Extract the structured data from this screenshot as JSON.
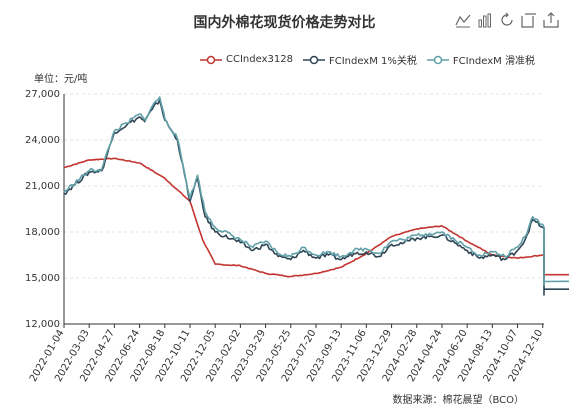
{
  "title": "国内外棉花现货价格走势对比",
  "unit_label": "单位：元/吨",
  "source": "数据来源：棉花晨望（BCO）",
  "toolbar": {
    "icons": [
      "line-switch-icon",
      "bar-switch-icon",
      "restore-icon",
      "data-view-icon",
      "save-image-icon"
    ]
  },
  "colors": {
    "cc": "#c23531",
    "fc1": "#2f4554",
    "fc2": "#61a0a8"
  },
  "chart_data": {
    "type": "line",
    "ylim": [
      12000,
      27000
    ],
    "yticks": [
      "12,000",
      "15,000",
      "18,000",
      "21,000",
      "24,000",
      "27,000"
    ],
    "yvalues": [
      12000,
      15000,
      18000,
      21000,
      24000,
      27000
    ],
    "xticks": [
      "2022-01-04",
      "2022-03-03",
      "2022-04-27",
      "2022-06-24",
      "2022-08-18",
      "2022-10-11",
      "2022-12-05",
      "2023-02-02",
      "2023-03-29",
      "2023-05-25",
      "2023-07-20",
      "2023-09-13",
      "2023-11-06",
      "2023-12-29",
      "2024-02-28",
      "2024-04-24",
      "2024-06-20",
      "2024-08-13",
      "2024-10-07",
      "2024-12-10"
    ],
    "grid": true,
    "legend_position": "top",
    "series": [
      {
        "name": "CCIndex3128",
        "color_key": "cc",
        "points": [
          [
            0,
            22200
          ],
          [
            1,
            22700
          ],
          [
            2,
            22800
          ],
          [
            3,
            22500
          ],
          [
            4,
            21500
          ],
          [
            5,
            20000
          ],
          [
            5.5,
            17500
          ],
          [
            6,
            15900
          ],
          [
            7,
            15800
          ],
          [
            8,
            15300
          ],
          [
            9,
            15100
          ],
          [
            10,
            15300
          ],
          [
            11,
            15700
          ],
          [
            12,
            16600
          ],
          [
            13,
            17700
          ],
          [
            14,
            18200
          ],
          [
            15,
            18400
          ],
          [
            16,
            17400
          ],
          [
            17,
            16500
          ],
          [
            18,
            16300
          ],
          [
            19,
            16500
          ],
          [
            20,
            16700
          ],
          [
            21,
            16700
          ],
          [
            22,
            16400
          ],
          [
            23,
            15500
          ],
          [
            24,
            15300
          ],
          [
            25,
            15000
          ],
          [
            26,
            15800
          ],
          [
            27,
            15400
          ],
          [
            28,
            15200
          ]
        ]
      },
      {
        "name": "FCIndexM 1%关税",
        "color_key": "fc1",
        "points": [
          [
            0,
            20500
          ],
          [
            1,
            21900
          ],
          [
            1.5,
            22000
          ],
          [
            2,
            24500
          ],
          [
            2.5,
            25000
          ],
          [
            3,
            25500
          ],
          [
            3.2,
            25200
          ],
          [
            3.5,
            26000
          ],
          [
            3.8,
            26600
          ],
          [
            4,
            25300
          ],
          [
            4.5,
            24000
          ],
          [
            5,
            20000
          ],
          [
            5.3,
            21500
          ],
          [
            5.6,
            19000
          ],
          [
            6,
            18000
          ],
          [
            7,
            17300
          ],
          [
            7.5,
            16800
          ],
          [
            8,
            17200
          ],
          [
            8.5,
            16400
          ],
          [
            9,
            16200
          ],
          [
            9.5,
            16800
          ],
          [
            10,
            16300
          ],
          [
            10.5,
            16500
          ],
          [
            11,
            16200
          ],
          [
            11.5,
            16600
          ],
          [
            12,
            16700
          ],
          [
            12.5,
            16400
          ],
          [
            13,
            17200
          ],
          [
            13.5,
            17300
          ],
          [
            14,
            17600
          ],
          [
            14.5,
            17700
          ],
          [
            15,
            17800
          ],
          [
            15.5,
            17300
          ],
          [
            16,
            16800
          ],
          [
            16.5,
            16300
          ],
          [
            17,
            16500
          ],
          [
            17.5,
            16200
          ],
          [
            18,
            16800
          ],
          [
            18.3,
            17500
          ],
          [
            18.6,
            18800
          ],
          [
            19,
            18300
          ],
          [
            19.5,
            17600
          ],
          [
            20,
            17200
          ],
          [
            20.5,
            16300
          ],
          [
            21,
            15900
          ],
          [
            21.5,
            15000
          ],
          [
            22,
            14700
          ],
          [
            22.5,
            14200
          ],
          [
            23,
            14100
          ],
          [
            23.5,
            14300
          ],
          [
            24,
            14000
          ],
          [
            24.5,
            14100
          ],
          [
            25,
            14300
          ],
          [
            25.5,
            14000
          ],
          [
            26,
            14500
          ],
          [
            26.5,
            14200
          ],
          [
            27,
            14300
          ],
          [
            27.5,
            14100
          ],
          [
            28,
            14300
          ]
        ]
      },
      {
        "name": "FCIndexM 滑准税",
        "color_key": "fc2",
        "points": [
          [
            0,
            20600
          ],
          [
            1,
            22000
          ],
          [
            1.5,
            22100
          ],
          [
            2,
            24600
          ],
          [
            2.5,
            25100
          ],
          [
            3,
            25700
          ],
          [
            3.2,
            25300
          ],
          [
            3.5,
            26200
          ],
          [
            3.8,
            26800
          ],
          [
            4,
            25400
          ],
          [
            4.5,
            24100
          ],
          [
            5,
            20200
          ],
          [
            5.3,
            21700
          ],
          [
            5.6,
            19300
          ],
          [
            6,
            18300
          ],
          [
            7,
            17500
          ],
          [
            7.5,
            17000
          ],
          [
            8,
            17400
          ],
          [
            8.5,
            16600
          ],
          [
            9,
            16400
          ],
          [
            9.5,
            17000
          ],
          [
            10,
            16500
          ],
          [
            10.5,
            16700
          ],
          [
            11,
            16400
          ],
          [
            11.5,
            16800
          ],
          [
            12,
            16900
          ],
          [
            12.5,
            16600
          ],
          [
            13,
            17400
          ],
          [
            13.5,
            17500
          ],
          [
            14,
            17800
          ],
          [
            14.5,
            17900
          ],
          [
            15,
            18000
          ],
          [
            15.5,
            17500
          ],
          [
            16,
            17000
          ],
          [
            16.5,
            16500
          ],
          [
            17,
            16700
          ],
          [
            17.5,
            16400
          ],
          [
            18,
            17000
          ],
          [
            18.3,
            17700
          ],
          [
            18.6,
            19000
          ],
          [
            19,
            18500
          ],
          [
            19.5,
            17800
          ],
          [
            20,
            17400
          ],
          [
            20.5,
            16500
          ],
          [
            21,
            16100
          ],
          [
            21.5,
            15200
          ],
          [
            22,
            15000
          ],
          [
            22.5,
            14800
          ],
          [
            23,
            14900
          ],
          [
            23.5,
            14900
          ],
          [
            24,
            14600
          ],
          [
            24.5,
            14700
          ],
          [
            25,
            14900
          ],
          [
            25.5,
            14600
          ],
          [
            26,
            15000
          ],
          [
            26.5,
            14800
          ],
          [
            27,
            14900
          ],
          [
            27.5,
            14700
          ],
          [
            28,
            14900
          ]
        ]
      }
    ]
  }
}
